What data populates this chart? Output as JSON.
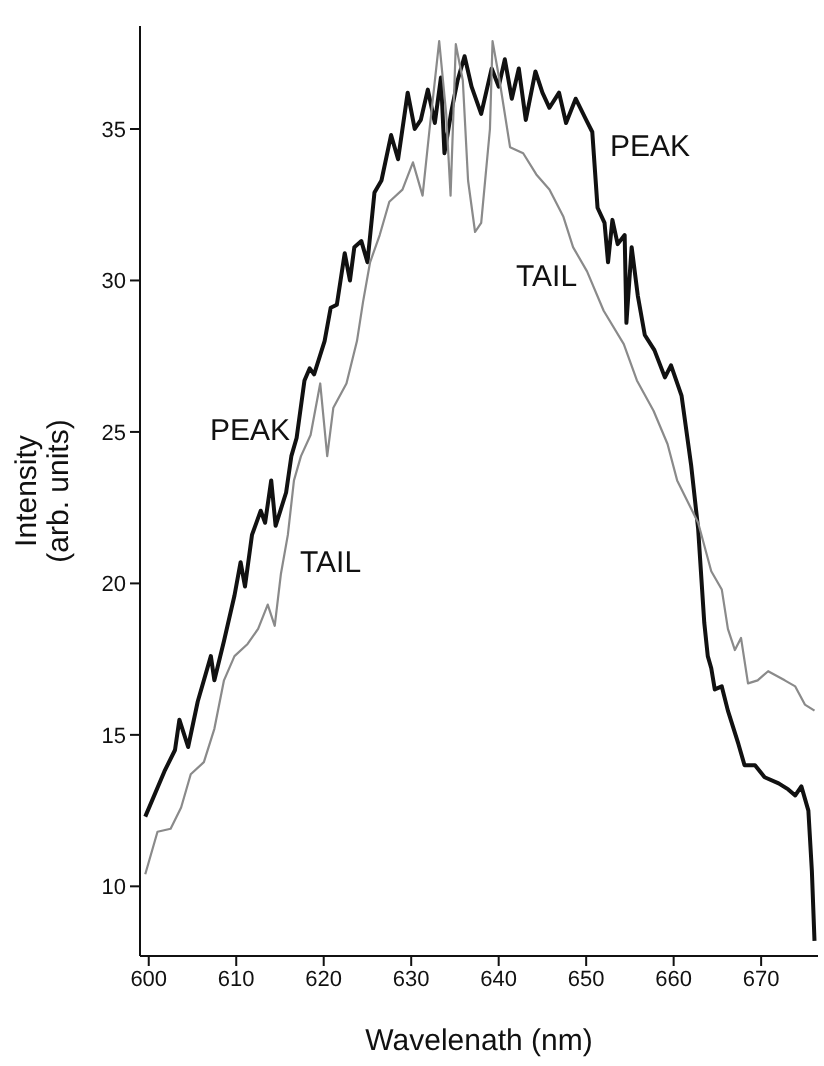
{
  "chart_data": {
    "type": "line",
    "xlabel": "Wavelenath (nm)",
    "ylabel": "Intensity (arb. units)",
    "xlim": [
      599,
      676.5
    ],
    "ylim": [
      7.7,
      38.4
    ],
    "xticks": [
      600,
      610,
      620,
      630,
      640,
      650,
      660,
      670
    ],
    "yticks": [
      10,
      15,
      20,
      25,
      30,
      35
    ],
    "grid": false,
    "legend": false,
    "marker": "none",
    "line_style": "solid",
    "annotations": [
      "PEAK",
      "TAIL"
    ],
    "series": [
      {
        "name": "PEAK",
        "color": "#111111",
        "x": [
          599.6,
          601.8,
          603,
          603.5,
          604.5,
          605.6,
          607.1,
          607.5,
          608.6,
          609.8,
          610.5,
          611,
          611.8,
          612.8,
          613.3,
          614,
          614.5,
          615.7,
          616.3,
          616.9,
          617.8,
          618.4,
          618.9,
          620.1,
          620.8,
          621.5,
          622.4,
          623,
          623.5,
          624.3,
          625,
          625.8,
          626.6,
          627.7,
          628.5,
          629.6,
          630.4,
          631.1,
          631.9,
          632.7,
          633.4,
          633.8,
          634.6,
          635.3,
          636.1,
          636.9,
          638,
          639.2,
          640,
          640.7,
          641.5,
          642.3,
          643.1,
          644.2,
          645,
          645.8,
          646.9,
          647.7,
          648.8,
          650,
          650.7,
          651.3,
          652.1,
          652.5,
          653,
          653.6,
          654.4,
          654.6,
          655.2,
          655.9,
          656.7,
          657.8,
          659,
          659.7,
          660.9,
          662,
          662.8,
          663.5,
          663.9,
          664.3,
          664.7,
          665.5,
          666.2,
          667.4,
          668.1,
          669.3,
          670.4,
          672,
          673.1,
          673.9,
          674.6,
          675.4,
          675.8,
          676.1
        ],
        "values": [
          12.3,
          13.8,
          14.5,
          15.5,
          14.6,
          16.1,
          17.6,
          16.8,
          18.1,
          19.6,
          20.7,
          19.9,
          21.6,
          22.4,
          22,
          23.4,
          21.9,
          23,
          24.2,
          24.8,
          26.7,
          27.1,
          26.9,
          28,
          29.1,
          29.2,
          30.9,
          30,
          31.1,
          31.3,
          30.6,
          32.9,
          33.3,
          34.8,
          34,
          36.2,
          35,
          35.3,
          36.3,
          35.2,
          36.7,
          34.2,
          35.6,
          36.6,
          37.4,
          36.4,
          35.5,
          37,
          36.4,
          37.3,
          36,
          37,
          35.3,
          36.9,
          36.2,
          35.7,
          36.2,
          35.2,
          36,
          35.3,
          34.9,
          32.4,
          31.9,
          30.6,
          32,
          31.2,
          31.5,
          28.6,
          31.1,
          29.5,
          28.2,
          27.7,
          26.8,
          27.2,
          26.2,
          23.9,
          21.8,
          18.7,
          17.6,
          17.2,
          16.5,
          16.6,
          15.8,
          14.7,
          14,
          14,
          13.6,
          13.4,
          13.2,
          13,
          13.3,
          12.5,
          10.5,
          8.2
        ]
      },
      {
        "name": "TAIL",
        "color": "#8a8a8a",
        "x": [
          599.6,
          601,
          602.5,
          603.7,
          604.8,
          606.3,
          607.5,
          608.6,
          609.8,
          611.3,
          612.5,
          613.6,
          614.4,
          615.1,
          615.9,
          616.6,
          617.4,
          618.5,
          619.6,
          620.4,
          621.1,
          622.6,
          623.8,
          624.5,
          625.3,
          626.4,
          627.5,
          629,
          630.2,
          631.3,
          632.1,
          633.2,
          634,
          634.5,
          635.1,
          635.9,
          636.5,
          637.3,
          638,
          639,
          639.3,
          640.1,
          641.3,
          642.8,
          644.3,
          645.8,
          647.4,
          648.5,
          650.1,
          652,
          654.3,
          655.8,
          657.7,
          659.3,
          660.4,
          662.8,
          664.3,
          665.5,
          666.2,
          667,
          667.7,
          668.5,
          669.6,
          670.8,
          672.7,
          673.9,
          675,
          676.1
        ],
        "values": [
          10.4,
          11.8,
          11.9,
          12.6,
          13.7,
          14.1,
          15.2,
          16.8,
          17.6,
          18,
          18.5,
          19.3,
          18.6,
          20.3,
          21.6,
          23.4,
          24.2,
          24.9,
          26.6,
          24.2,
          25.8,
          26.6,
          28,
          29.3,
          30.6,
          31.5,
          32.6,
          33,
          33.9,
          32.8,
          35,
          37.9,
          35.5,
          32.8,
          37.8,
          36.6,
          33.3,
          31.6,
          31.9,
          35,
          37.9,
          36.6,
          34.4,
          34.2,
          33.5,
          33,
          32.1,
          31.1,
          30.3,
          29,
          27.9,
          26.7,
          25.7,
          24.6,
          23.4,
          22,
          20.4,
          19.8,
          18.5,
          17.8,
          18.2,
          16.7,
          16.8,
          17.1,
          16.8,
          16.6,
          16,
          15.8
        ]
      }
    ]
  }
}
